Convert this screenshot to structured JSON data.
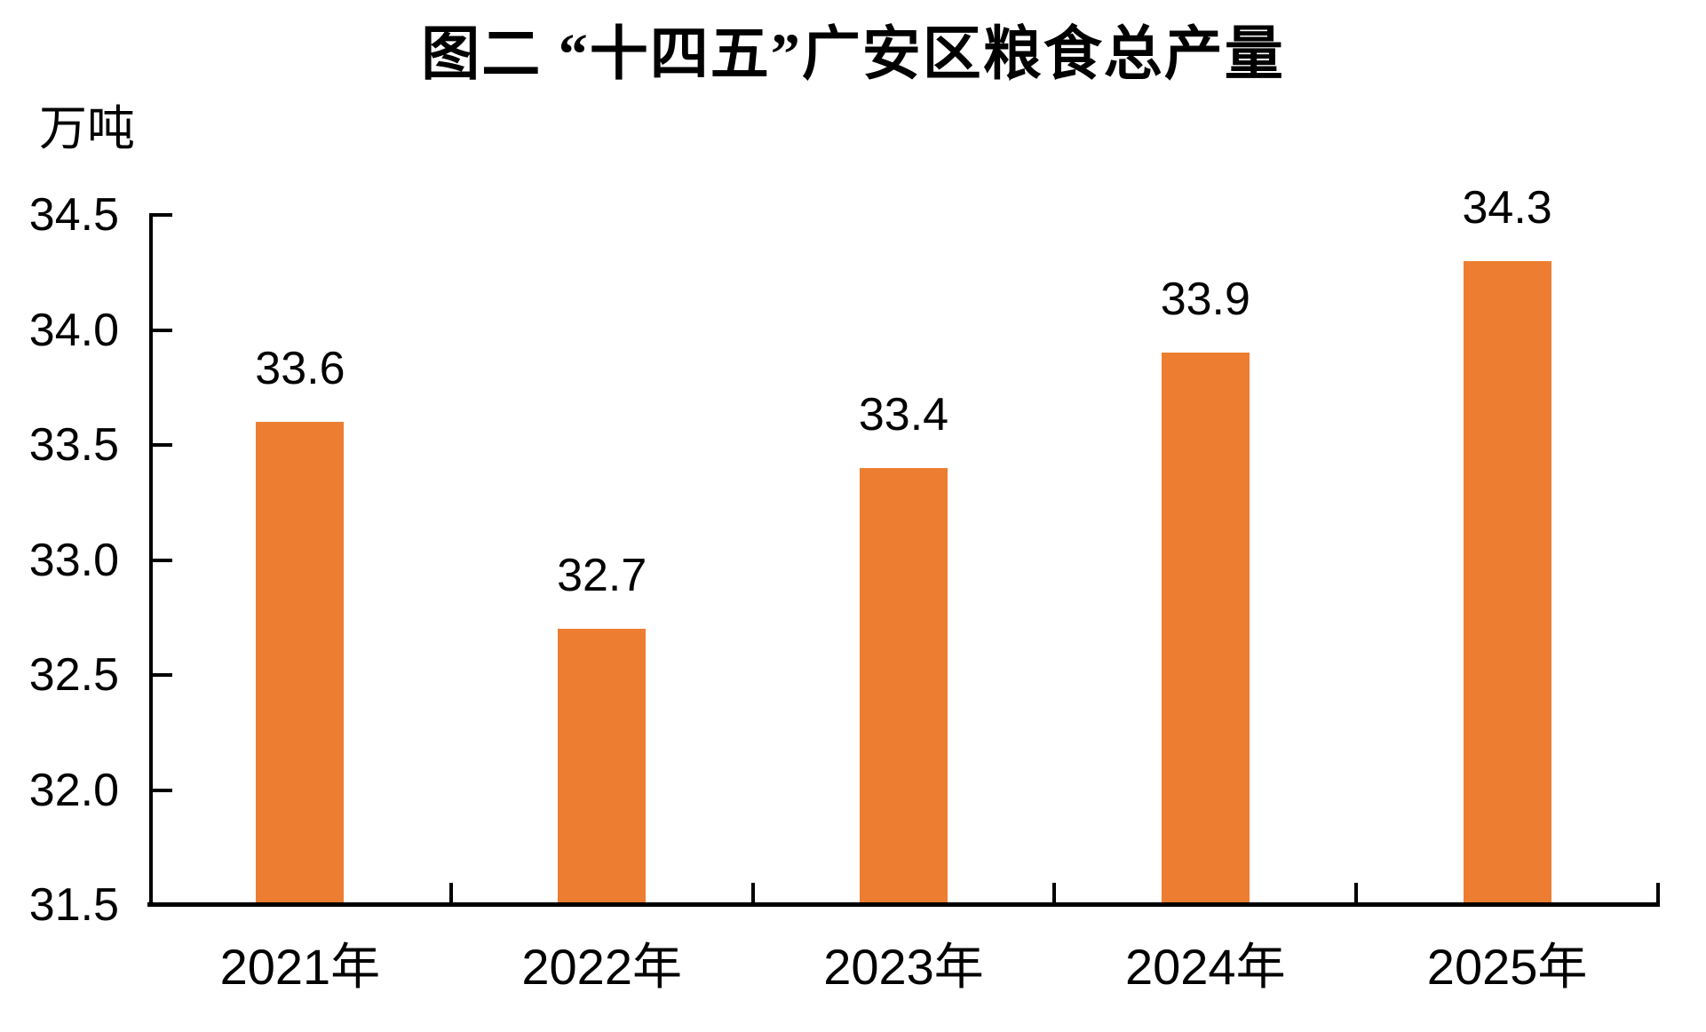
{
  "title": "图二 “十四五”广安区粮食总产量",
  "unit_label": "万吨",
  "colors": {
    "bar": "#ED7D31",
    "axis": "#000000",
    "text": "#000000",
    "background": "#FFFFFF"
  },
  "chart_data": {
    "type": "bar",
    "title": "图二 “十四五”广安区粮食总产量",
    "ylabel": "万吨",
    "xlabel": "",
    "categories": [
      "2021年",
      "2022年",
      "2023年",
      "2024年",
      "2025年"
    ],
    "values": [
      33.6,
      32.7,
      33.4,
      33.9,
      34.3
    ],
    "data_labels": [
      "33.6",
      "32.7",
      "33.4",
      "33.9",
      "34.3"
    ],
    "ylim": [
      31.5,
      34.5
    ],
    "ytick_interval": 0.5,
    "ytick_labels": [
      "34.5",
      "34.0",
      "33.5",
      "33.0",
      "32.5",
      "32.0",
      "31.5"
    ],
    "grid": false,
    "legend": "none",
    "bar_color": "#ED7D31"
  }
}
